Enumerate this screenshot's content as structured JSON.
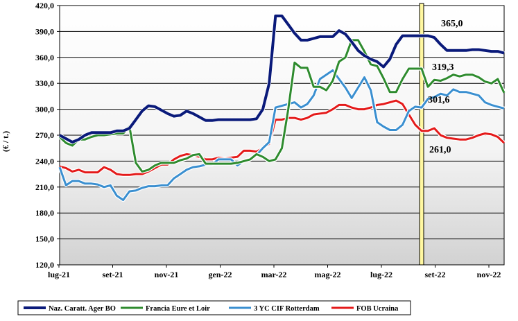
{
  "chart_data": {
    "type": "line",
    "ylabel": "(€ / t.)",
    "ylim": [
      120,
      420
    ],
    "yticks": [
      "420,0",
      "390,0",
      "360,0",
      "330,0",
      "300,0",
      "270,0",
      "240,0",
      "210,0",
      "180,0",
      "150,0",
      "120,0"
    ],
    "xticks": [
      "lug-21",
      "set-21",
      "nov-21",
      "gen-22",
      "mar-22",
      "mag-22",
      "lug-22",
      "set-22",
      "nov-22"
    ],
    "grid": "horizontal",
    "legend_position": "bottom",
    "highlight_band": "late aug-22",
    "series": [
      {
        "name": "Naz. Caratt. Ager BO",
        "color": "#0a1a7a",
        "end_label": "365,0",
        "values": [
          270,
          266,
          262,
          265,
          270,
          273,
          273,
          273,
          273,
          275,
          275,
          278,
          288,
          298,
          304,
          303,
          299,
          295,
          292,
          293,
          298,
          295,
          291,
          287,
          287,
          288,
          288,
          288,
          288,
          288,
          288,
          289,
          300,
          330,
          408,
          408,
          398,
          388,
          380,
          380,
          382,
          384,
          384,
          384,
          391,
          387,
          378,
          368,
          362,
          358,
          355,
          349,
          358,
          375,
          385,
          385,
          385,
          385,
          385,
          383,
          375,
          368,
          368,
          368,
          368,
          369,
          369,
          368,
          367,
          367,
          365
        ]
      },
      {
        "name": "Francia Eure et Loir",
        "color": "#2e8b2e",
        "end_label": "319,3",
        "values": [
          268,
          261,
          258,
          265,
          265,
          268,
          270,
          270,
          271,
          272,
          272,
          280,
          238,
          228,
          230,
          235,
          238,
          238,
          238,
          241,
          243,
          247,
          248,
          237,
          237,
          237,
          237,
          237,
          238,
          240,
          242,
          248,
          245,
          240,
          242,
          255,
          300,
          354,
          348,
          348,
          326,
          326,
          322,
          333,
          355,
          360,
          380,
          380,
          367,
          352,
          350,
          336,
          320,
          320,
          335,
          347,
          347,
          347,
          326,
          334,
          333,
          336,
          340,
          338,
          340,
          340,
          337,
          332,
          330,
          335,
          319
        ]
      },
      {
        "name": "3 YC CIF Rotterdam",
        "color": "#3a8fd0",
        "end_label": "301,6",
        "values": [
          233,
          212,
          217,
          217,
          214,
          214,
          213,
          210,
          212,
          200,
          195,
          205,
          206,
          209,
          211,
          211,
          212,
          212,
          220,
          225,
          230,
          233,
          234,
          236,
          236,
          242,
          242,
          242,
          235,
          240,
          243,
          247,
          255,
          262,
          302,
          304,
          306,
          308,
          302,
          306,
          316,
          335,
          340,
          345,
          335,
          325,
          313,
          325,
          337,
          322,
          285,
          280,
          276,
          276,
          282,
          298,
          303,
          302,
          312,
          314,
          318,
          316,
          323,
          320,
          320,
          318,
          316,
          308,
          305,
          303,
          301
        ]
      },
      {
        "name": "FOB Ucraina",
        "color": "#e41a1a",
        "end_label": "261,0",
        "values": [
          234,
          232,
          228,
          230,
          227,
          227,
          227,
          233,
          230,
          225,
          224,
          224,
          225,
          225,
          228,
          232,
          236,
          236,
          242,
          246,
          248,
          247,
          245,
          242,
          242,
          244,
          243,
          244,
          245,
          252,
          252,
          251,
          255,
          260,
          288,
          288,
          290,
          290,
          288,
          290,
          294,
          295,
          296,
          300,
          305,
          305,
          302,
          300,
          300,
          302,
          305,
          306,
          308,
          310,
          306,
          294,
          282,
          275,
          275,
          278,
          270,
          267,
          266,
          265,
          265,
          267,
          270,
          272,
          271,
          268,
          261
        ]
      }
    ]
  }
}
